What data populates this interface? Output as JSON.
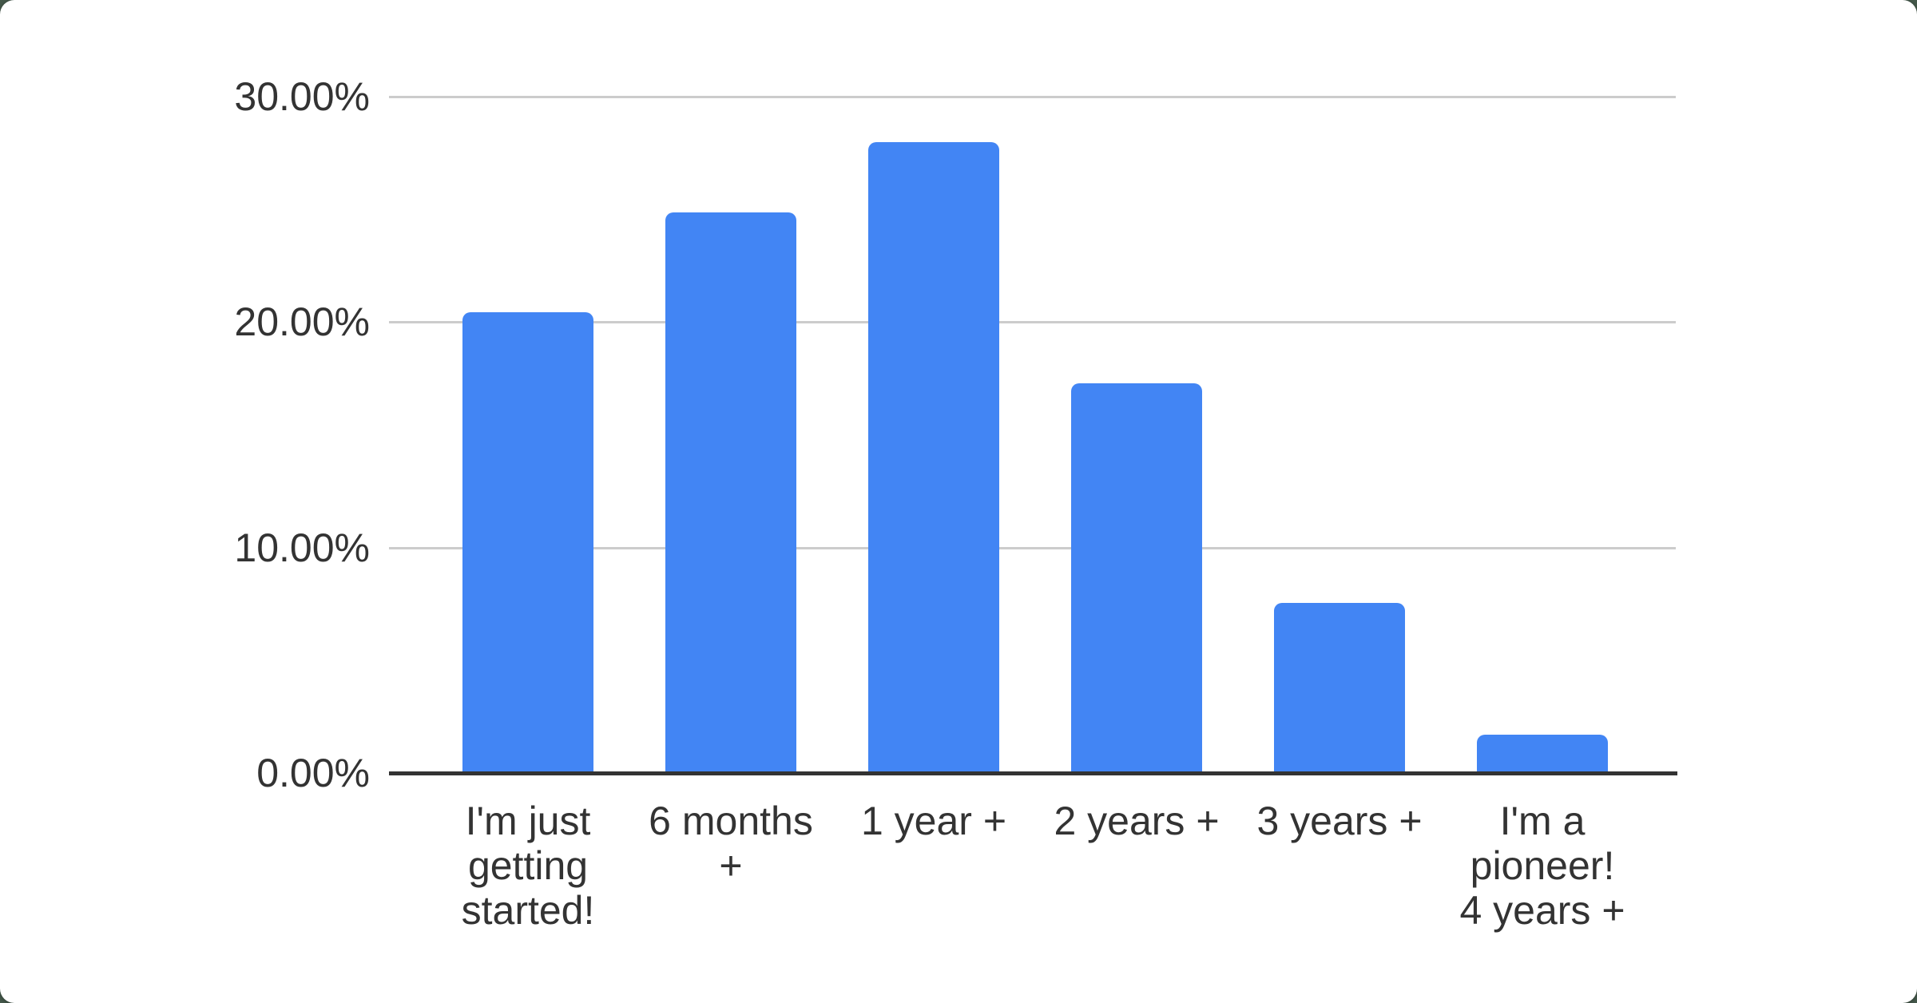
{
  "page": {
    "background_color": "#45594b",
    "card_color": "#ffffff"
  },
  "chart_data": {
    "type": "bar",
    "title": "",
    "xlabel": "",
    "ylabel": "",
    "categories": [
      "I'm just getting started!",
      "6 months +",
      "1 year +",
      "2 years +",
      "3 years +",
      "I'm a pioneer! 4 years +"
    ],
    "category_label_lines": [
      [
        "I'm just",
        "getting",
        "started!"
      ],
      [
        "6 months",
        "+"
      ],
      [
        "1 year +"
      ],
      [
        "2 years +"
      ],
      [
        "3 years +"
      ],
      [
        "I'm a",
        "pioneer!",
        "4 years +"
      ]
    ],
    "values": [
      20.45,
      24.86,
      27.98,
      17.28,
      7.55,
      1.7
    ],
    "unit": "%",
    "ylim": [
      0,
      30
    ],
    "yticks": [
      {
        "value": 30,
        "label": "30.00%"
      },
      {
        "value": 20,
        "label": "20.00%"
      },
      {
        "value": 10,
        "label": "10.00%"
      },
      {
        "value": 0,
        "label": "0.00%"
      }
    ],
    "grid": true,
    "legend_position": "none",
    "colors": {
      "bar": "#4285F4",
      "gridline": "#cccccc",
      "axis_line": "#333333",
      "tick_text": "#333333"
    }
  }
}
